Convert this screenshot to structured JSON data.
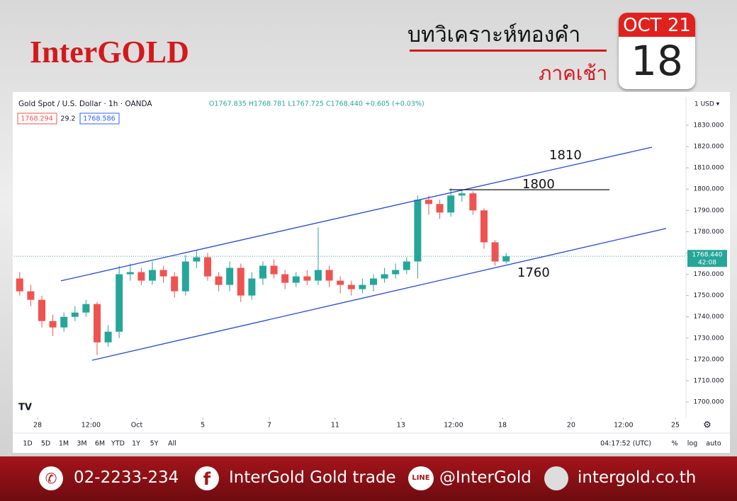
{
  "header": {
    "brand": "InterGOLD",
    "title": "บทวิเคราะห์ทองคำ",
    "subtitle": "ภาคเช้า",
    "month": "OCT 21",
    "day": "18"
  },
  "chart_data": {
    "type": "candlestick",
    "title": "Gold Spot / U.S. Dollar · 1h · OANDA",
    "ohlc_text": "O1767.835 H1768.781 L1767.725 C1768.440 +0.605 (+0.03%)",
    "info_boxes": [
      "1768.294",
      "29.2",
      "1768.586"
    ],
    "currency": "1 USD ▾",
    "x": [
      0,
      1,
      2,
      3,
      4,
      5,
      6,
      7,
      8,
      9,
      10,
      11,
      12,
      13,
      14,
      15,
      16,
      17,
      18,
      19,
      20,
      21,
      22,
      23,
      24,
      25,
      26,
      27,
      28,
      29,
      30,
      31,
      32,
      33,
      34,
      35,
      36,
      37,
      38,
      39,
      40,
      41,
      42,
      43,
      44
    ],
    "open": [
      1758,
      1752,
      1748,
      1738,
      1735,
      1740,
      1742,
      1746,
      1728,
      1733,
      1760,
      1761,
      1757,
      1762,
      1759,
      1752,
      1766,
      1768,
      1759,
      1755,
      1763,
      1750,
      1758,
      1764,
      1760,
      1756,
      1759,
      1757,
      1762,
      1757,
      1755,
      1753,
      1755,
      1758,
      1760,
      1762,
      1766,
      1795,
      1793,
      1789,
      1797,
      1798,
      1790,
      1775,
      1766
    ],
    "high": [
      1761,
      1755,
      1750,
      1741,
      1742,
      1745,
      1748,
      1747,
      1736,
      1764,
      1765,
      1763,
      1766,
      1764,
      1761,
      1769,
      1771,
      1770,
      1761,
      1766,
      1765,
      1761,
      1766,
      1767,
      1762,
      1761,
      1762,
      1782,
      1764,
      1759,
      1757,
      1758,
      1760,
      1763,
      1765,
      1768,
      1797,
      1797,
      1795,
      1800.4,
      1800,
      1799,
      1791,
      1776,
      1770
    ],
    "low": [
      1750,
      1745,
      1735,
      1731,
      1733,
      1738,
      1740,
      1722,
      1726,
      1730,
      1757,
      1755,
      1755,
      1756,
      1749,
      1750,
      1763,
      1757,
      1752,
      1752,
      1747,
      1748,
      1755,
      1758,
      1753,
      1754,
      1755,
      1755,
      1754,
      1751,
      1750,
      1751,
      1752,
      1756,
      1758,
      1760,
      1758,
      1788,
      1786,
      1787,
      1794,
      1788,
      1772,
      1764,
      1765
    ],
    "close": [
      1752,
      1748,
      1738,
      1735,
      1740,
      1742,
      1746,
      1728,
      1733,
      1760,
      1761,
      1757,
      1762,
      1759,
      1752,
      1766,
      1768,
      1759,
      1755,
      1763,
      1750,
      1758,
      1764,
      1760,
      1756,
      1759,
      1757,
      1762,
      1757,
      1755,
      1753,
      1755,
      1758,
      1760,
      1762,
      1766,
      1795,
      1793,
      1789,
      1797,
      1798,
      1790,
      1775,
      1766,
      1768.44
    ],
    "up_color": "#26a69a",
    "down_color": "#ef5350",
    "last_price_label": "1768.440",
    "countdown": "42:08",
    "xlim": [
      -0.5,
      60.27
    ],
    "xticks": [
      {
        "value": 1.62,
        "label": "28"
      },
      {
        "value": 6.45,
        "label": "12:00"
      },
      {
        "value": 10.59,
        "label": "Oct"
      },
      {
        "value": 16.56,
        "label": "5"
      },
      {
        "value": 22.58,
        "label": "7"
      },
      {
        "value": 28.53,
        "label": "11"
      },
      {
        "value": 34.49,
        "label": "13"
      },
      {
        "value": 39.24,
        "label": "12:00"
      },
      {
        "value": 43.67,
        "label": "18"
      },
      {
        "value": 49.88,
        "label": "20"
      },
      {
        "value": 54.62,
        "label": "12:00"
      },
      {
        "value": 59.31,
        "label": "25"
      }
    ],
    "ylim": [
      1692.7,
      1843.3
    ],
    "yticks": [
      {
        "value": 1700,
        "label": "1700.000"
      },
      {
        "value": 1710,
        "label": "1710.000"
      },
      {
        "value": 1720,
        "label": "1720.000"
      },
      {
        "value": 1730,
        "label": "1730.000"
      },
      {
        "value": 1740,
        "label": "1740.000"
      },
      {
        "value": 1750,
        "label": "1750.000"
      },
      {
        "value": 1760,
        "label": "1760.000"
      },
      {
        "value": 1770,
        "label": "1770.000"
      },
      {
        "value": 1780,
        "label": "1780.000"
      },
      {
        "value": 1790,
        "label": "1790.000"
      },
      {
        "value": 1800,
        "label": "1800.000"
      },
      {
        "value": 1810,
        "label": "1810.000"
      },
      {
        "value": 1820,
        "label": "1820.000"
      },
      {
        "value": 1830,
        "label": "1830.000"
      }
    ],
    "annotations": [
      {
        "text": "1810",
        "color": "#2447e0",
        "x": [
          3.73,
          57.19
        ],
        "y": [
          1756.9,
          1819.7
        ]
      },
      {
        "text": "1800",
        "color": "#111111",
        "x": [
          38.86,
          53.35
        ],
        "y": [
          1799.7,
          1799.7
        ]
      },
      {
        "text": "1760",
        "color": "#2447e0",
        "x": [
          6.55,
          58.47
        ],
        "y": [
          1719.6,
          1781.5
        ]
      }
    ]
  },
  "toolbar": {
    "ranges": [
      "1D",
      "5D",
      "1M",
      "3M",
      "6M",
      "YTD",
      "1Y",
      "5Y",
      "All"
    ],
    "clock": "04:17:52 (UTC)",
    "options": [
      "%",
      "log",
      "auto"
    ]
  },
  "footer": {
    "phone": "02-2233-234",
    "facebook": "InterGold Gold trade",
    "line": "@InterGold",
    "web": "intergold.co.th"
  }
}
